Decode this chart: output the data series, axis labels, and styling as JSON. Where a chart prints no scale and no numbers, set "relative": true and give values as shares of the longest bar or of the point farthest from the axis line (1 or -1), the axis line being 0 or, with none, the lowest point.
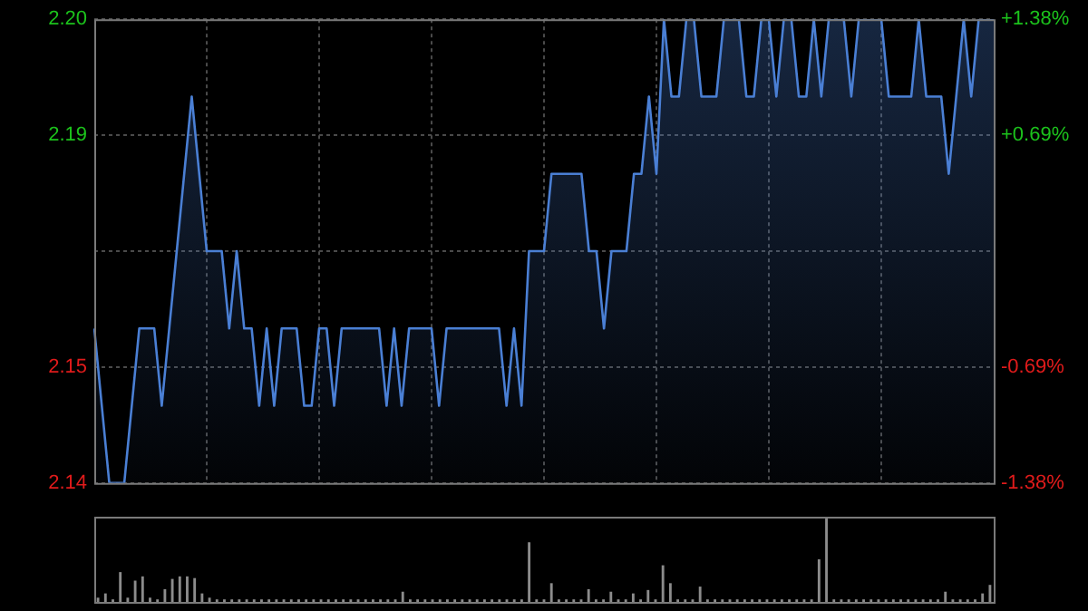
{
  "chart_data": [
    {
      "type": "area",
      "color": "#4a7fd4",
      "grid": true,
      "tick_labels": "y",
      "categories": [
        null,
        null,
        null,
        null,
        null,
        null,
        null,
        null,
        null,
        null,
        null,
        null,
        null,
        null,
        null,
        null,
        null,
        null,
        null,
        null,
        null,
        null,
        null,
        null,
        null,
        null,
        null,
        null,
        null,
        null,
        null,
        null,
        null,
        null,
        null,
        null,
        null,
        null,
        null,
        null,
        null,
        null,
        null,
        null,
        null,
        null,
        null,
        null,
        null,
        null,
        null,
        null,
        null,
        null,
        null,
        null,
        null,
        null,
        null,
        null,
        null,
        null,
        null,
        null,
        null,
        null,
        null,
        null,
        null,
        null,
        null,
        null,
        null,
        null,
        null,
        null,
        null,
        null,
        null,
        null,
        null,
        null,
        null,
        null,
        null,
        null,
        null,
        null,
        null,
        null,
        null,
        null,
        null,
        null,
        null,
        null,
        null,
        null,
        null,
        null,
        null,
        null,
        null,
        null,
        null,
        null,
        null,
        null,
        null,
        null,
        null,
        null,
        null,
        null,
        null,
        null,
        null,
        null,
        null,
        null,
        null
      ],
      "values": [
        2.16,
        2.15,
        2.14,
        2.14,
        2.14,
        2.15,
        2.16,
        2.16,
        2.16,
        2.15,
        2.16,
        2.17,
        2.18,
        2.19,
        2.18,
        2.17,
        2.17,
        2.17,
        2.16,
        2.17,
        2.16,
        2.16,
        2.15,
        2.16,
        2.15,
        2.16,
        2.16,
        2.16,
        2.15,
        2.15,
        2.16,
        2.16,
        2.15,
        2.16,
        2.16,
        2.16,
        2.16,
        2.16,
        2.16,
        2.15,
        2.16,
        2.15,
        2.16,
        2.16,
        2.16,
        2.16,
        2.15,
        2.16,
        2.16,
        2.16,
        2.16,
        2.16,
        2.16,
        2.16,
        2.16,
        2.15,
        2.16,
        2.15,
        2.17,
        2.17,
        2.17,
        2.18,
        2.18,
        2.18,
        2.18,
        2.18,
        2.17,
        2.17,
        2.16,
        2.17,
        2.17,
        2.17,
        2.18,
        2.18,
        2.19,
        2.18,
        2.2,
        2.19,
        2.19,
        2.2,
        2.2,
        2.19,
        2.19,
        2.19,
        2.2,
        2.2,
        2.2,
        2.19,
        2.19,
        2.2,
        2.2,
        2.19,
        2.2,
        2.2,
        2.19,
        2.19,
        2.2,
        2.19,
        2.2,
        2.2,
        2.2,
        2.19,
        2.2,
        2.2,
        2.2,
        2.2,
        2.19,
        2.19,
        2.19,
        2.19,
        2.2,
        2.19,
        2.19,
        2.19,
        2.18,
        2.19,
        2.2,
        2.19,
        2.2,
        2.2,
        2.2
      ],
      "ylim": [
        2.14,
        2.2
      ],
      "yticks": [
        2.14,
        {
          "value": 2.155,
          "label": "2.15"
        },
        {
          "value": 2.17,
          "label": null
        },
        {
          "value": 2.185,
          "label": "2.19"
        },
        {
          "value": 2.2,
          "label": "2.20"
        }
      ],
      "y2lim": [
        -1.38,
        1.38
      ],
      "y2ticks": [
        {
          "value": -1.38,
          "label": "-1.38%"
        },
        {
          "value": -0.69,
          "label": "-0.69%"
        },
        {
          "value": 0,
          "label": null
        },
        {
          "value": 0.69,
          "label": "+0.69%"
        },
        {
          "value": 1.38,
          "label": "+1.38%"
        }
      ]
    },
    {
      "type": "bar",
      "color": "#8c8c8c",
      "relative": true,
      "tick_labels": false,
      "categories": [
        null,
        null,
        null,
        null,
        null,
        null,
        null,
        null,
        null,
        null,
        null,
        null,
        null,
        null,
        null,
        null,
        null,
        null,
        null,
        null,
        null,
        null,
        null,
        null,
        null,
        null,
        null,
        null,
        null,
        null,
        null,
        null,
        null,
        null,
        null,
        null,
        null,
        null,
        null,
        null,
        null,
        null,
        null,
        null,
        null,
        null,
        null,
        null,
        null,
        null,
        null,
        null,
        null,
        null,
        null,
        null,
        null,
        null,
        null,
        null,
        null,
        null,
        null,
        null,
        null,
        null,
        null,
        null,
        null,
        null,
        null,
        null,
        null,
        null,
        null,
        null,
        null,
        null,
        null,
        null,
        null,
        null,
        null,
        null,
        null,
        null,
        null,
        null,
        null,
        null,
        null,
        null,
        null,
        null,
        null,
        null,
        null,
        null,
        null,
        null,
        null,
        null,
        null,
        null,
        null,
        null,
        null,
        null,
        null,
        null,
        null,
        null,
        null,
        null,
        null,
        null,
        null,
        null,
        null,
        null,
        null
      ],
      "values": [
        0.05,
        0.1,
        0.03,
        0.35,
        0.05,
        0.25,
        0.3,
        0.05,
        0.03,
        0.15,
        0.27,
        0.3,
        0.3,
        0.28,
        0.1,
        0.05,
        0.03,
        0.03,
        0.03,
        0.03,
        0.03,
        0.03,
        0.03,
        0.03,
        0.03,
        0.03,
        0.03,
        0.03,
        0.03,
        0.03,
        0.03,
        0.03,
        0.03,
        0.03,
        0.03,
        0.03,
        0.03,
        0.03,
        0.03,
        0.03,
        0.03,
        0.12,
        0.03,
        0.03,
        0.03,
        0.03,
        0.03,
        0.03,
        0.03,
        0.03,
        0.03,
        0.03,
        0.03,
        0.03,
        0.03,
        0.03,
        0.03,
        0.03,
        0.7,
        0.03,
        0.03,
        0.22,
        0.03,
        0.03,
        0.03,
        0.03,
        0.15,
        0.03,
        0.03,
        0.12,
        0.03,
        0.03,
        0.1,
        0.03,
        0.14,
        0.03,
        0.43,
        0.22,
        0.03,
        0.03,
        0.03,
        0.18,
        0.03,
        0.03,
        0.03,
        0.03,
        0.03,
        0.03,
        0.03,
        0.03,
        0.03,
        0.03,
        0.03,
        0.03,
        0.03,
        0.03,
        0.03,
        0.5,
        1,
        0.03,
        0.03,
        0.03,
        0.03,
        0.03,
        0.03,
        0.03,
        0.03,
        0.03,
        0.03,
        0.03,
        0.03,
        0.03,
        0.03,
        0.03,
        0.12,
        0.03,
        0.03,
        0.03,
        0.03,
        0.1,
        0.2
      ]
    }
  ]
}
